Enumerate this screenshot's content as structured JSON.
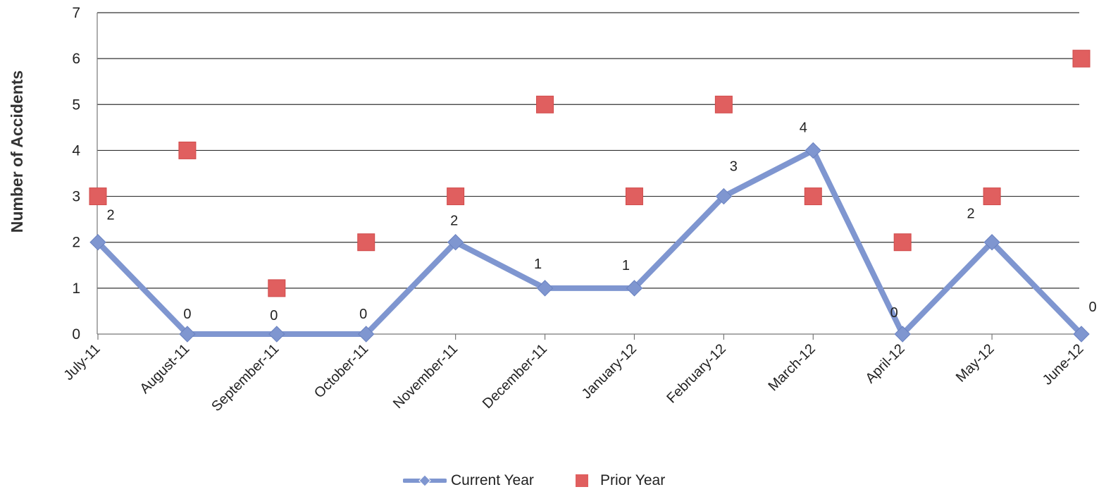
{
  "chart_data": {
    "type": "line",
    "title": "",
    "xlabel": "",
    "ylabel": "Number of Accidents",
    "ylim": [
      0,
      7
    ],
    "yticks": [
      "0",
      "1",
      "2",
      "3",
      "4",
      "5",
      "6",
      "7"
    ],
    "categories": [
      "July-11",
      "August-11",
      "September-11",
      "October-11",
      "November-11",
      "December-11",
      "January-12",
      "February-12",
      "March-12",
      "April-12",
      "May-12",
      "June-12"
    ],
    "grid": "horizontal",
    "legend_position": "bottom",
    "series": [
      {
        "name": "Current Year",
        "style": "line-with-diamond-markers",
        "color": "#7f96d0",
        "values": [
          2,
          0,
          0,
          0,
          2,
          1,
          1,
          3,
          4,
          0,
          2,
          0
        ],
        "data_labels": [
          "2",
          "0",
          "0",
          "0",
          "2",
          "1",
          "1",
          "3",
          "4",
          "0",
          "2",
          "0"
        ]
      },
      {
        "name": "Prior Year",
        "style": "square-markers",
        "color": "#e05f5f",
        "values": [
          3,
          4,
          1,
          2,
          3,
          5,
          3,
          5,
          3,
          2,
          3,
          6
        ]
      }
    ]
  }
}
